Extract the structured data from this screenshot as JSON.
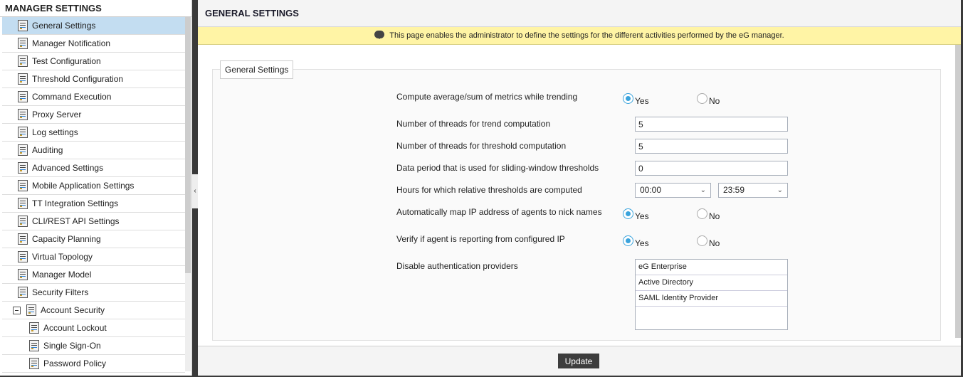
{
  "sidebar": {
    "title": "MANAGER SETTINGS",
    "items": [
      {
        "label": "General Settings",
        "active": true,
        "level": 0
      },
      {
        "label": "Manager Notification",
        "level": 0
      },
      {
        "label": "Test Configuration",
        "level": 0
      },
      {
        "label": "Threshold Configuration",
        "level": 0
      },
      {
        "label": "Command Execution",
        "level": 0
      },
      {
        "label": "Proxy Server",
        "level": 0
      },
      {
        "label": "Log settings",
        "level": 0
      },
      {
        "label": "Auditing",
        "level": 0
      },
      {
        "label": "Advanced Settings",
        "level": 0
      },
      {
        "label": "Mobile Application Settings",
        "level": 0
      },
      {
        "label": "TT Integration Settings",
        "level": 0
      },
      {
        "label": "CLI/REST API Settings",
        "level": 0
      },
      {
        "label": "Capacity Planning",
        "level": 0
      },
      {
        "label": "Virtual Topology",
        "level": 0
      },
      {
        "label": "Manager Model",
        "level": 0
      },
      {
        "label": "Security Filters",
        "level": 0
      },
      {
        "label": "Account Security",
        "level": 0,
        "expanded": true
      },
      {
        "label": "Account Lockout",
        "level": 1
      },
      {
        "label": "Single Sign-On",
        "level": 1
      },
      {
        "label": "Password Policy",
        "level": 1
      }
    ]
  },
  "collapse_icon": "‹",
  "header": {
    "title": "GENERAL SETTINGS"
  },
  "banner": {
    "icon": "speech-bubble-icon",
    "text": "This page enables the administrator to define the settings for the different activities performed by the eG manager."
  },
  "form": {
    "legend": "General Settings",
    "compute_avg": {
      "label": "Compute average/sum of metrics while trending",
      "yes": "Yes",
      "no": "No",
      "value": "Yes"
    },
    "trend_threads": {
      "label": "Number of threads for trend computation",
      "value": "5"
    },
    "threshold_threads": {
      "label": "Number of threads for threshold computation",
      "value": "5"
    },
    "data_period": {
      "label": "Data period that is used for sliding-window thresholds",
      "value": "0"
    },
    "hours": {
      "label": "Hours for which relative thresholds are computed",
      "from": "00:00",
      "to": "23:59"
    },
    "map_ip": {
      "label": "Automatically map IP address of agents to nick names",
      "yes": "Yes",
      "no": "No",
      "value": "Yes"
    },
    "verify_ip": {
      "label": "Verify if agent is reporting from configured IP",
      "yes": "Yes",
      "no": "No",
      "value": "Yes"
    },
    "auth": {
      "label": "Disable authentication providers",
      "options": [
        "eG Enterprise",
        "Active Directory",
        "SAML Identity Provider"
      ]
    }
  },
  "footer": {
    "update_label": "Update"
  },
  "colors": {
    "accent": "#3aa3dc",
    "active_item": "#c3ddf1",
    "banner": "#fff4a5",
    "button": "#3d3d3d"
  }
}
